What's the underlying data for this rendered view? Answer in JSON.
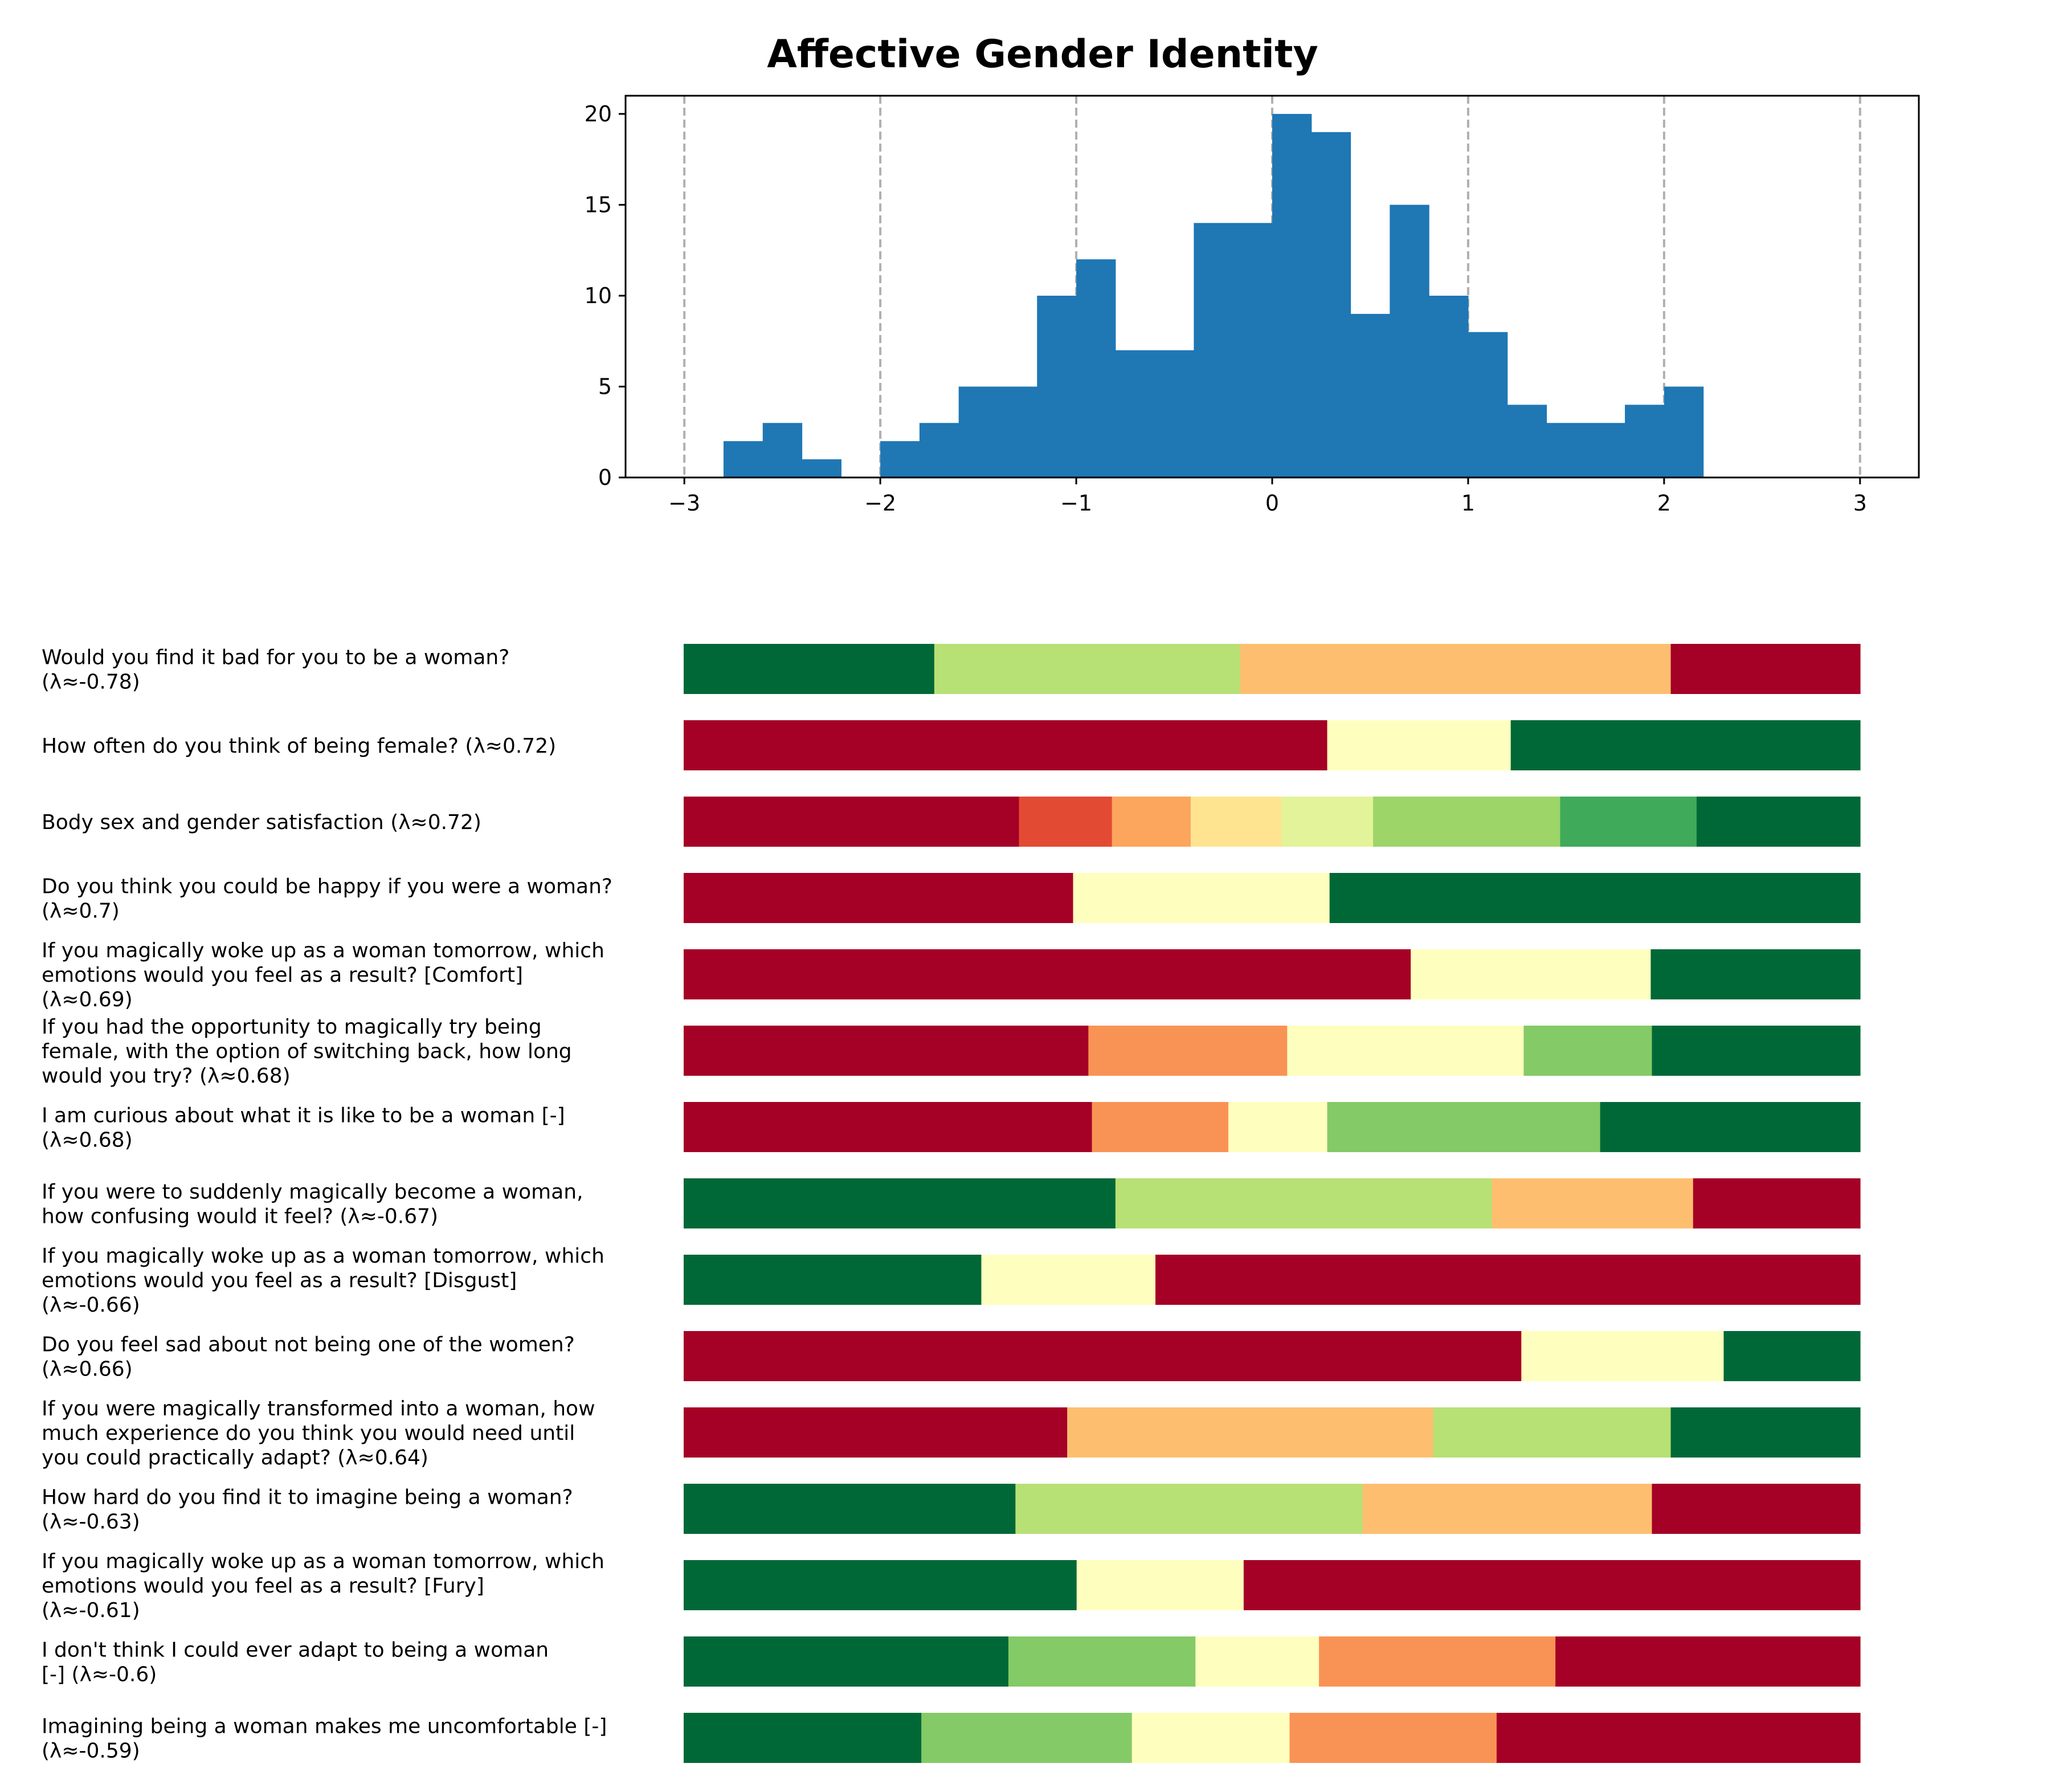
{
  "chart_data": [
    {
      "type": "bar",
      "title": "Affective Gender Identity",
      "xlabel": "",
      "ylabel": "",
      "xlim": [
        -3.3,
        3.3
      ],
      "ylim": [
        0,
        21
      ],
      "xticks": [
        -3,
        -2,
        -1,
        0,
        1,
        2,
        3
      ],
      "xtick_labels": [
        "−3",
        "−2",
        "−1",
        "0",
        "1",
        "2",
        "3"
      ],
      "yticks": [
        0,
        5,
        10,
        15,
        20
      ],
      "ytick_labels": [
        "0",
        "5",
        "10",
        "15",
        "20"
      ],
      "grid": "vertical dashed lines at integer x",
      "bin_width": 0.2,
      "bin_starts": [
        -2.8,
        -2.6,
        -2.4,
        -2.2,
        -2.0,
        -1.8,
        -1.6,
        -1.4,
        -1.2,
        -1.0,
        -0.8,
        -0.6,
        -0.4,
        -0.2,
        0.0,
        0.2,
        0.4,
        0.6,
        0.8,
        1.0,
        1.2,
        1.4,
        1.6,
        1.8,
        2.0
      ],
      "values": [
        2,
        3,
        1,
        0,
        2,
        3,
        5,
        5,
        10,
        12,
        7,
        7,
        14,
        14,
        20,
        19,
        9,
        15,
        10,
        8,
        4,
        3,
        3,
        4,
        5
      ],
      "color": "#1f77b4"
    },
    {
      "type": "bar",
      "orientation": "horizontal-stacked",
      "xlim": [
        0,
        1
      ],
      "items": [
        {
          "label": "Would you find it bad for you to be a woman? (λ≈-0.78)",
          "segments": [
            0.213,
            0.26,
            0.366,
            0.161
          ],
          "colors": [
            "#006837",
            "#b7e075",
            "#fdbf6f",
            "#a50026"
          ]
        },
        {
          "label": "How often do you think of being female? (λ≈0.72)",
          "segments": [
            0.547,
            0.156,
            0.297
          ],
          "colors": [
            "#a50026",
            "#feffbe",
            "#006837"
          ]
        },
        {
          "label": "Body sex and gender satisfaction (λ≈0.72)",
          "segments": [
            0.285,
            0.079,
            0.067,
            0.077,
            0.078,
            0.159,
            0.116,
            0.139
          ],
          "colors": [
            "#a50026",
            "#e34a33",
            "#fca55d",
            "#fee491",
            "#e3f399",
            "#9dd569",
            "#3faa59",
            "#006837"
          ]
        },
        {
          "label": "Do you think you could be happy if you were a woman? (λ≈0.7)",
          "segments": [
            0.331,
            0.218,
            0.451
          ],
          "colors": [
            "#a50026",
            "#feffbe",
            "#006837"
          ]
        },
        {
          "label": "If you magically woke up as a woman tomorrow, which emotions would you feel as a result? [Comfort] (λ≈0.69)",
          "segments": [
            0.618,
            0.204,
            0.178
          ],
          "colors": [
            "#a50026",
            "#feffbe",
            "#006837"
          ]
        },
        {
          "label": "If you had the opportunity to magically try being female, with the option of switching back, how long would you try? (λ≈0.68)",
          "segments": [
            0.344,
            0.169,
            0.201,
            0.109,
            0.177
          ],
          "colors": [
            "#a50026",
            "#f99355",
            "#feffbe",
            "#84ca66",
            "#006837"
          ]
        },
        {
          "label": "I am curious about what it is like to be a woman [-] (λ≈0.68)",
          "segments": [
            0.347,
            0.116,
            0.084,
            0.232,
            0.221
          ],
          "colors": [
            "#a50026",
            "#f99355",
            "#feffbe",
            "#84ca66",
            "#006837"
          ]
        },
        {
          "label": "If you were to suddenly magically become a woman, how confusing would it feel? (λ≈-0.67)",
          "segments": [
            0.367,
            0.32,
            0.171,
            0.142
          ],
          "colors": [
            "#006837",
            "#b7e075",
            "#fdbf6f",
            "#a50026"
          ]
        },
        {
          "label": "If you magically woke up as a woman tomorrow, which emotions would you feel as a result? [Disgust] (λ≈-0.66)",
          "segments": [
            0.253,
            0.148,
            0.599
          ],
          "colors": [
            "#006837",
            "#feffbe",
            "#a50026"
          ]
        },
        {
          "label": "Do you feel sad about not being one of the women? (λ≈0.66)",
          "segments": [
            0.712,
            0.172,
            0.116
          ],
          "colors": [
            "#a50026",
            "#feffbe",
            "#006837"
          ]
        },
        {
          "label": "If you were magically transformed into a woman, how much experience do you think you would need until you could practically adapt? (λ≈0.64)",
          "segments": [
            0.326,
            0.311,
            0.202,
            0.161
          ],
          "colors": [
            "#a50026",
            "#fdbf6f",
            "#b7e075",
            "#006837"
          ]
        },
        {
          "label": "How hard do you find it to imagine being a woman? (λ≈-0.63)",
          "segments": [
            0.282,
            0.295,
            0.246,
            0.177
          ],
          "colors": [
            "#006837",
            "#b7e075",
            "#fdbf6f",
            "#a50026"
          ]
        },
        {
          "label": "If you magically woke up as a woman tomorrow, which emotions would you feel as a result? [Fury] (λ≈-0.61)",
          "segments": [
            0.334,
            0.142,
            0.524
          ],
          "colors": [
            "#006837",
            "#feffbe",
            "#a50026"
          ]
        },
        {
          "label": "I don't think I could ever adapt to being a woman [-] (λ≈-0.6)",
          "segments": [
            0.276,
            0.159,
            0.105,
            0.201,
            0.259
          ],
          "colors": [
            "#006837",
            "#84ca66",
            "#feffbe",
            "#f99355",
            "#a50026"
          ]
        },
        {
          "label": "Imagining being a woman makes me uncomfortable [-] (λ≈-0.59)",
          "segments": [
            0.202,
            0.179,
            0.134,
            0.176,
            0.309
          ],
          "colors": [
            "#006837",
            "#84ca66",
            "#feffbe",
            "#f99355",
            "#a50026"
          ]
        }
      ]
    }
  ]
}
